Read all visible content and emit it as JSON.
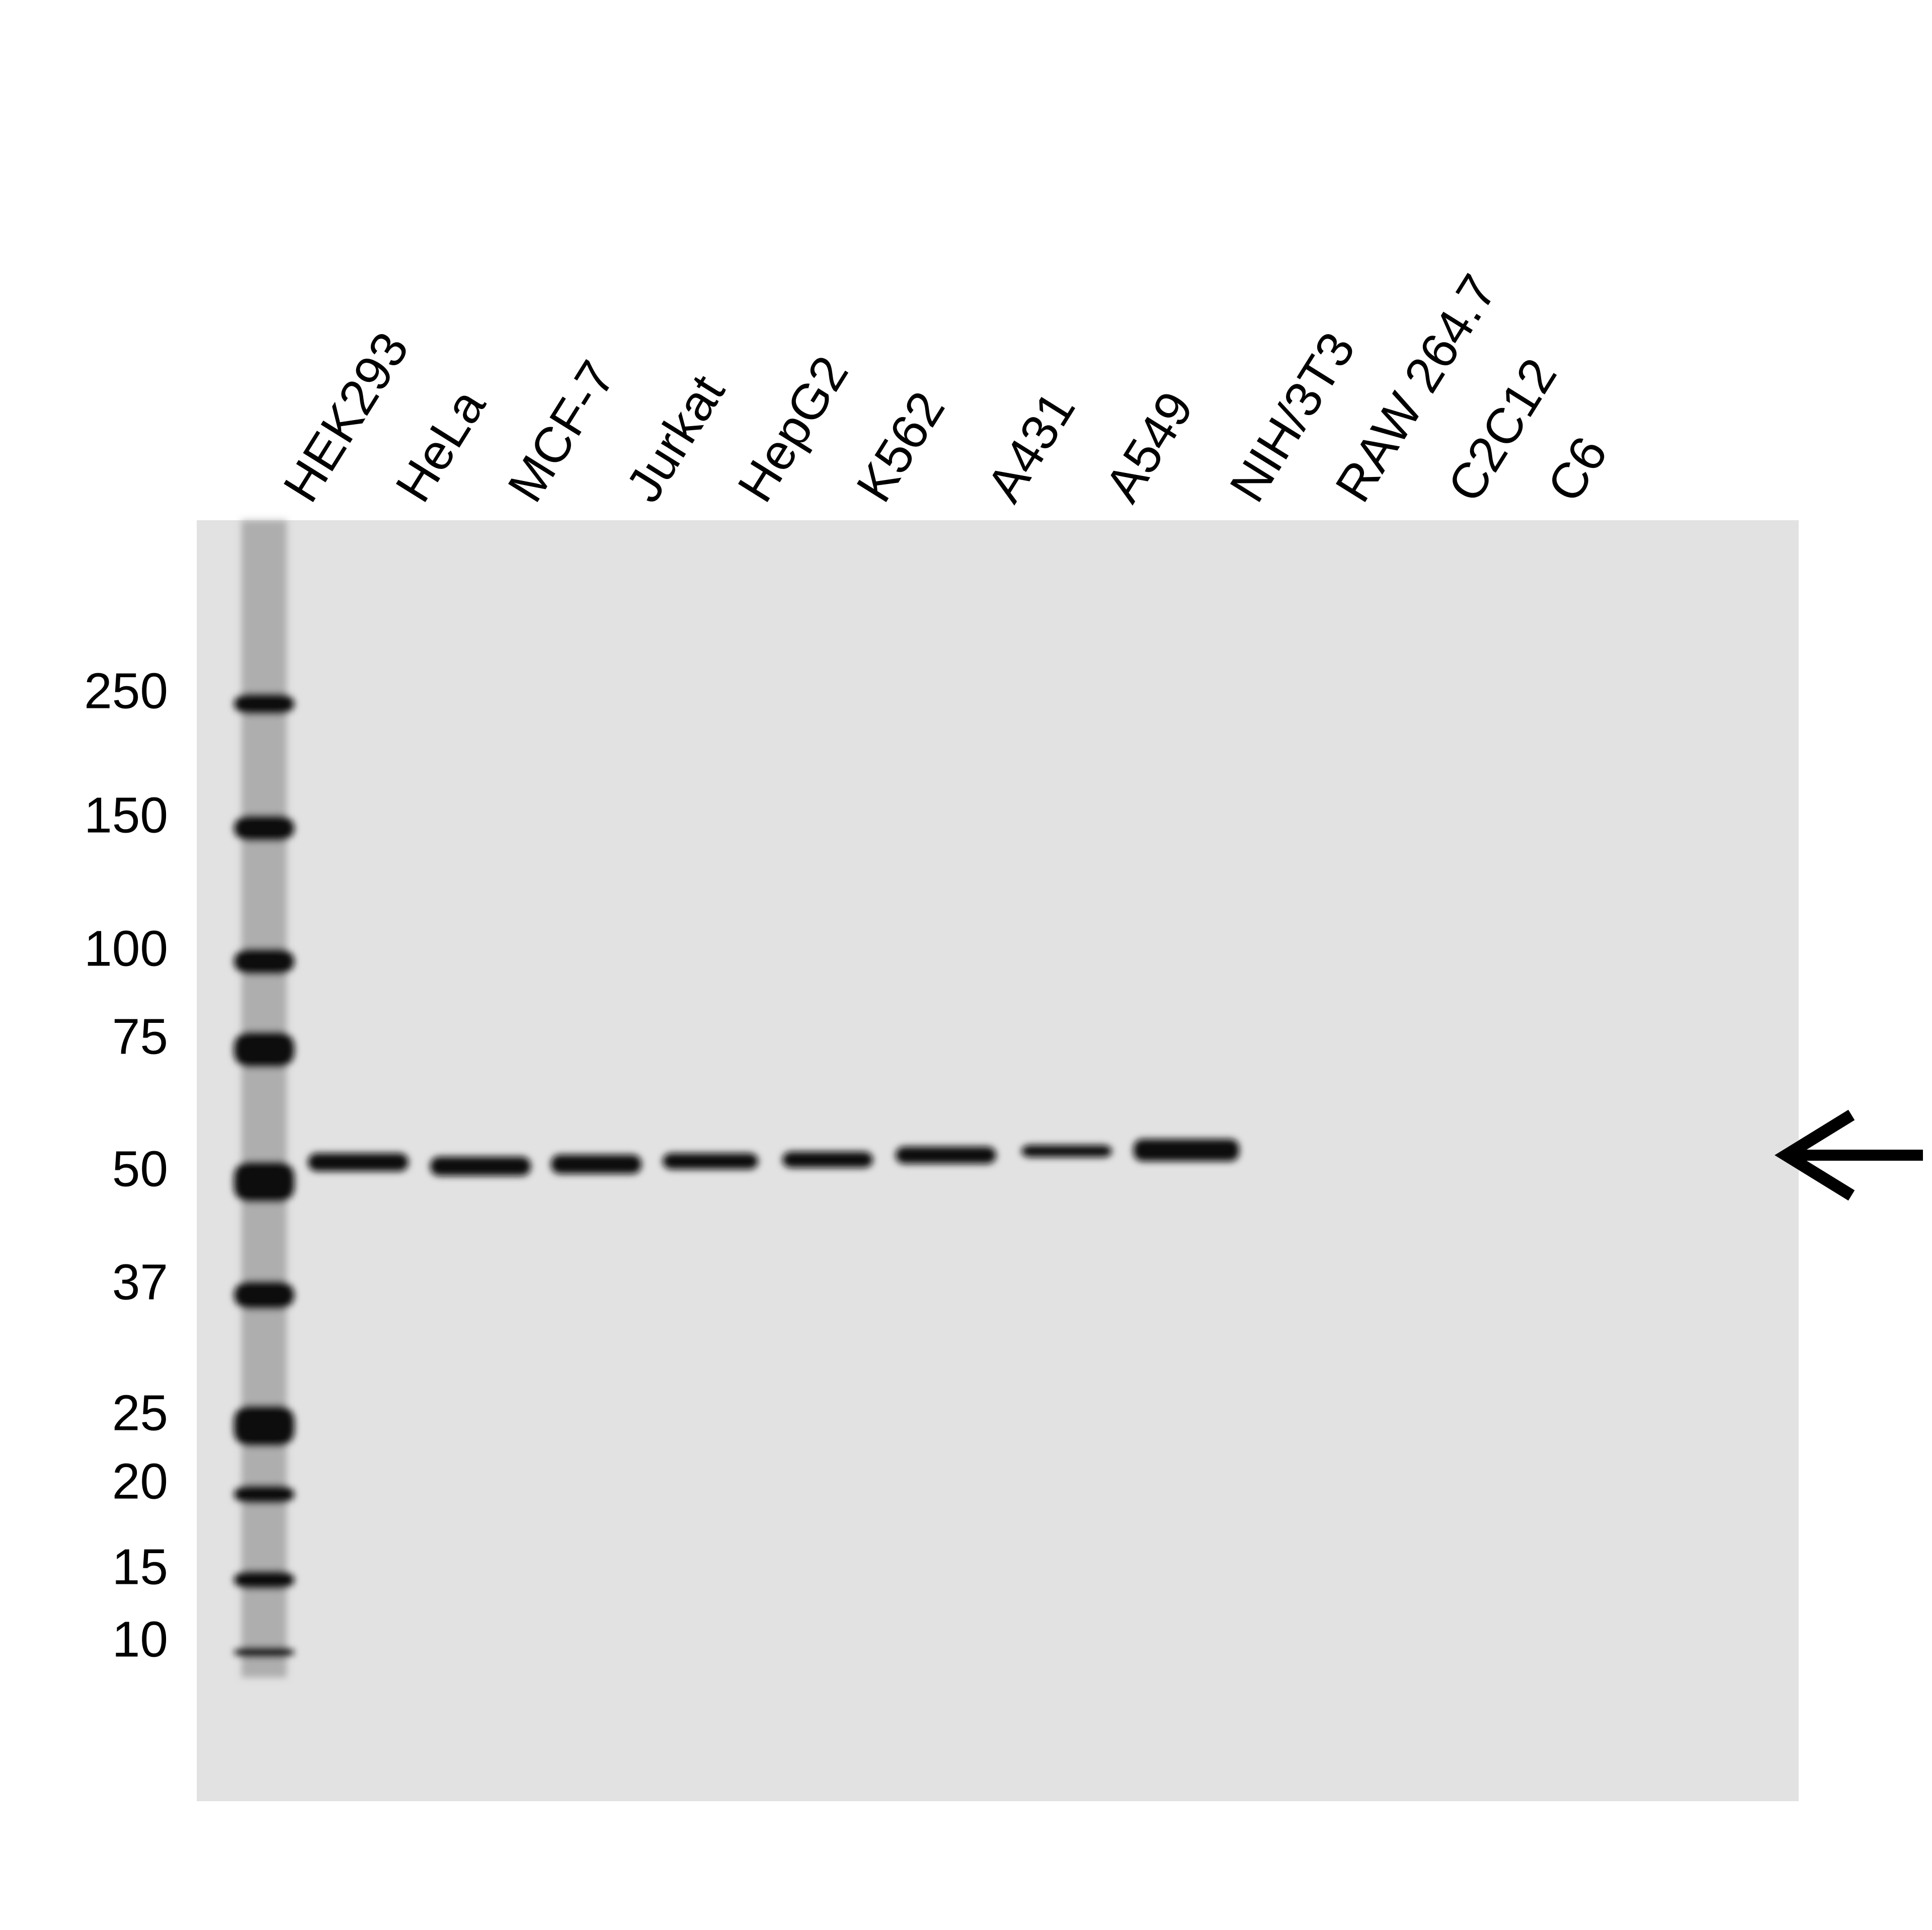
{
  "lanes": [
    "HEK293",
    "HeLa",
    "MCF-7",
    "Jurkat",
    "HepG2",
    "K562",
    "A431",
    "A549",
    "NIH/3T3",
    "RAW 264.7",
    "C2C12",
    "C6"
  ],
  "markers": [
    250,
    150,
    100,
    75,
    50,
    37,
    25,
    20,
    15,
    10
  ]
}
